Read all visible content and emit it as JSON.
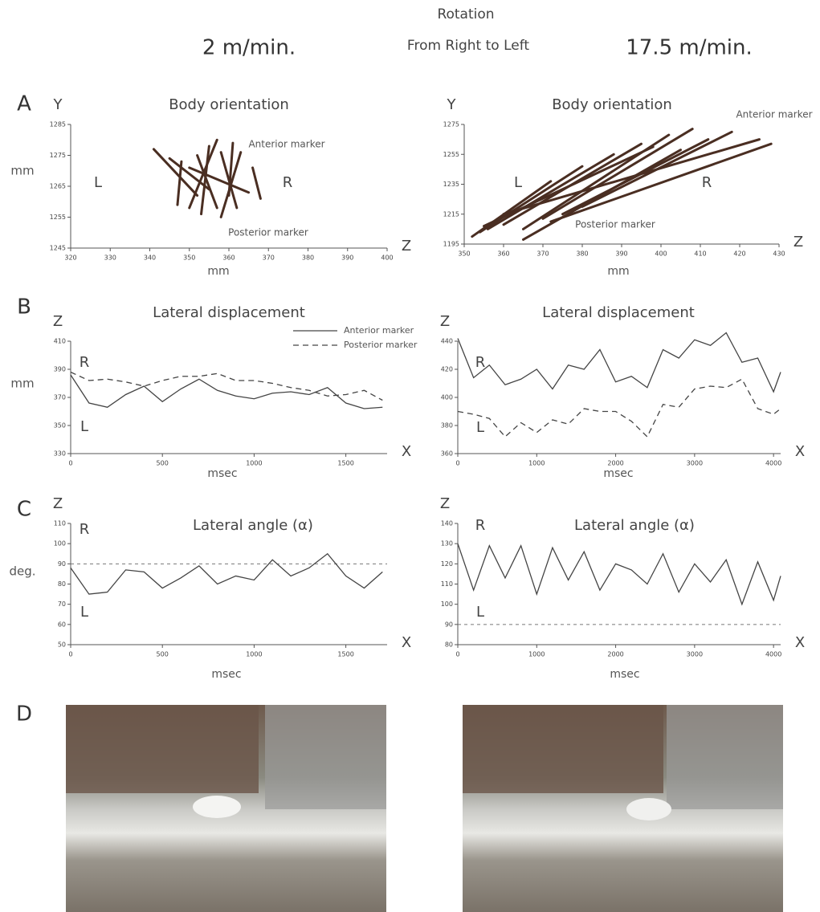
{
  "header": {
    "title": "Rotation",
    "left_speed": "2 m/min.",
    "direction": "From Right to Left",
    "right_speed": "17.5 m/min."
  },
  "panels": [
    "A",
    "B",
    "C",
    "D"
  ],
  "chart_data": [
    {
      "type": "stick",
      "title": "Body orientation",
      "ylabel": "Y",
      "xlabel": "mm",
      "xlabel_end": "Z",
      "units": "mm",
      "left_label": "L",
      "right_label": "R",
      "annotations": [
        "Anterior marker",
        "Posterior marker"
      ],
      "color": "#4a2e22",
      "anterior": {
        "x": [
          341,
          348,
          352,
          355,
          358,
          361,
          363,
          345,
          350,
          357,
          366
        ],
        "y": [
          1277,
          1273,
          1275,
          1278,
          1276,
          1279,
          1276,
          1274,
          1271,
          1280,
          1271
        ]
      },
      "posterior": {
        "x": [
          352,
          347,
          357,
          353,
          362,
          360,
          358,
          355,
          365,
          350,
          368
        ],
        "y": [
          1262,
          1259,
          1258,
          1256,
          1258,
          1262,
          1255,
          1264,
          1263,
          1258,
          1261
        ]
      },
      "xlim": [
        320,
        400
      ],
      "xticks": [
        320,
        330,
        340,
        350,
        360,
        370,
        380,
        390,
        400
      ],
      "ylim": [
        1245,
        1285
      ],
      "yticks": [
        1245,
        1255,
        1265,
        1275,
        1285
      ]
    },
    {
      "type": "stick",
      "title": "Body orientation",
      "ylabel": "Y",
      "xlabel": "mm",
      "xlabel_end": "Z",
      "left_label": "L",
      "right_label": "R",
      "annotations": [
        "Anterior marker",
        "Posterior marker"
      ],
      "color": "#4a2e22",
      "anterior": {
        "x": [
          372,
          380,
          388,
          395,
          402,
          408,
          412,
          418,
          425,
          398,
          405,
          428
        ],
        "y": [
          1237,
          1247,
          1255,
          1262,
          1268,
          1272,
          1265,
          1270,
          1265,
          1260,
          1258,
          1262
        ]
      },
      "posterior": {
        "x": [
          352,
          354,
          356,
          360,
          365,
          370,
          375,
          380,
          360,
          355,
          365,
          372
        ],
        "y": [
          1200,
          1203,
          1205,
          1208,
          1205,
          1212,
          1215,
          1220,
          1215,
          1207,
          1198,
          1210
        ]
      },
      "xlim": [
        350,
        430
      ],
      "xticks": [
        350,
        360,
        370,
        380,
        390,
        400,
        410,
        420,
        430
      ],
      "ylim": [
        1195,
        1275
      ],
      "yticks": [
        1195,
        1215,
        1235,
        1255,
        1275
      ]
    },
    {
      "type": "line",
      "title": "Lateral displacement",
      "ylabel": "Z",
      "xlabel": "msec",
      "xlabel_end": "X",
      "units": "mm",
      "left_label": "L",
      "right_label": "R",
      "legend": true,
      "x": [
        0,
        100,
        200,
        300,
        400,
        500,
        600,
        700,
        800,
        900,
        1000,
        1100,
        1200,
        1300,
        1400,
        1500,
        1600,
        1700
      ],
      "series": [
        {
          "name": "Anterior marker",
          "color": "#444444",
          "dash": false,
          "values": [
            386,
            366,
            363,
            372,
            378,
            367,
            376,
            383,
            375,
            371,
            369,
            373,
            374,
            372,
            377,
            366,
            362,
            363
          ]
        },
        {
          "name": "Posterior marker",
          "color": "#444444",
          "dash": true,
          "values": [
            388,
            382,
            383,
            381,
            378,
            382,
            385,
            385,
            387,
            382,
            382,
            380,
            377,
            375,
            371,
            372,
            375,
            368
          ]
        }
      ],
      "xlim": [
        0,
        1725
      ],
      "xticks": [
        0,
        500,
        1000,
        1500
      ],
      "ylim": [
        330,
        410
      ],
      "yticks": [
        330,
        350,
        370,
        390,
        410
      ]
    },
    {
      "type": "line",
      "title": "Lateral displacement",
      "ylabel": "Z",
      "xlabel": "msec",
      "xlabel_end": "X",
      "left_label": "L",
      "right_label": "R",
      "legend": false,
      "x": [
        0,
        200,
        400,
        600,
        800,
        1000,
        1200,
        1400,
        1600,
        1800,
        2000,
        2200,
        2400,
        2600,
        2800,
        3000,
        3200,
        3400,
        3600,
        3800,
        4000,
        4090
      ],
      "series": [
        {
          "color": "#444444",
          "dash": false,
          "values": [
            442,
            414,
            423,
            409,
            413,
            420,
            406,
            423,
            420,
            434,
            411,
            415,
            407,
            434,
            428,
            441,
            437,
            446,
            425,
            428,
            404,
            418
          ]
        },
        {
          "color": "#444444",
          "dash": true,
          "values": [
            390,
            388,
            385,
            372,
            382,
            375,
            384,
            381,
            392,
            390,
            390,
            383,
            372,
            395,
            393,
            406,
            408,
            407,
            413,
            392,
            388,
            392
          ]
        }
      ],
      "xlim": [
        0,
        4090
      ],
      "xticks": [
        0,
        1000,
        2000,
        3000,
        4000
      ],
      "ylim": [
        360,
        440
      ],
      "yticks": [
        360,
        380,
        400,
        420,
        440
      ]
    },
    {
      "type": "line",
      "title": "Lateral angle (α)",
      "ylabel": "Z",
      "xlabel": "msec",
      "xlabel_end": "X",
      "units": "deg.",
      "left_label": "L",
      "right_label": "R",
      "refline": 90,
      "x": [
        0,
        100,
        200,
        300,
        400,
        500,
        600,
        700,
        800,
        900,
        1000,
        1100,
        1200,
        1300,
        1400,
        1500,
        1600,
        1700
      ],
      "series": [
        {
          "color": "#444444",
          "dash": false,
          "values": [
            88,
            75,
            76,
            87,
            86,
            78,
            83,
            89,
            80,
            84,
            82,
            92,
            84,
            88,
            95,
            84,
            78,
            86
          ]
        }
      ],
      "xlim": [
        0,
        1725
      ],
      "xticks": [
        0,
        500,
        1000,
        1500
      ],
      "ylim": [
        50,
        110
      ],
      "yticks": [
        50,
        60,
        70,
        80,
        90,
        100,
        110
      ]
    },
    {
      "type": "line",
      "title": "Lateral angle (α)",
      "ylabel": "Z",
      "xlabel": "msec",
      "xlabel_end": "X",
      "left_label": "L",
      "right_label": "R",
      "refline": 90,
      "x": [
        0,
        200,
        400,
        600,
        800,
        1000,
        1200,
        1400,
        1600,
        1800,
        2000,
        2200,
        2400,
        2600,
        2800,
        3000,
        3200,
        3400,
        3600,
        3800,
        4000,
        4090
      ],
      "series": [
        {
          "color": "#444444",
          "dash": false,
          "values": [
            130,
            107,
            129,
            113,
            129,
            105,
            128,
            112,
            126,
            107,
            120,
            117,
            110,
            125,
            106,
            120,
            111,
            122,
            100,
            121,
            102,
            114
          ]
        }
      ],
      "xlim": [
        0,
        4090
      ],
      "xticks": [
        0,
        1000,
        2000,
        3000,
        4000
      ],
      "ylim": [
        80,
        140
      ],
      "yticks": [
        80,
        90,
        100,
        110,
        120,
        130,
        140
      ]
    }
  ]
}
